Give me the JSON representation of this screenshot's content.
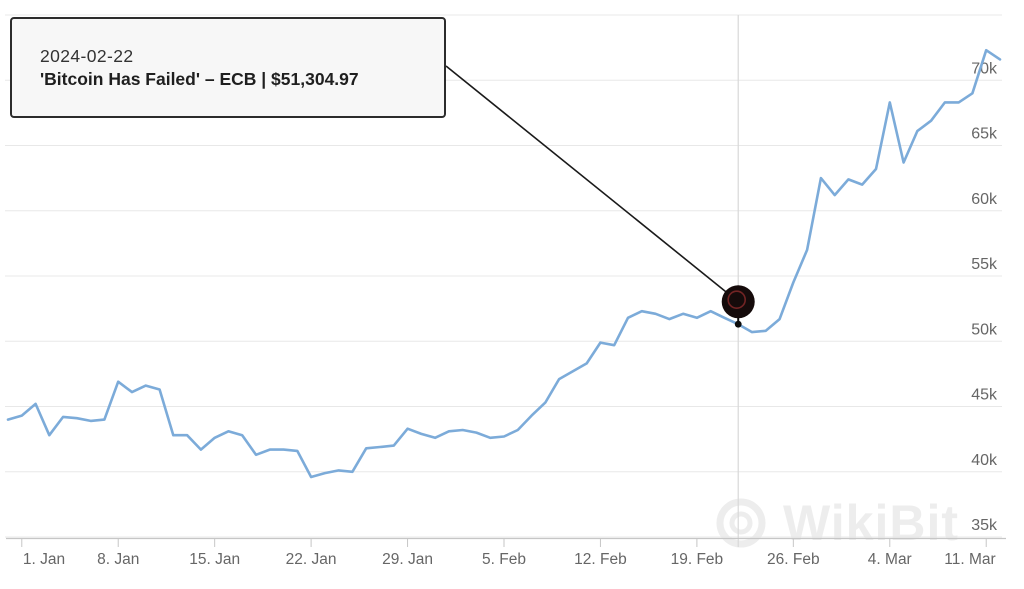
{
  "tooltip": {
    "date": "2024-02-22",
    "label": "'Bitcoin Has Failed' – ECB | $51,304.97"
  },
  "watermark": {
    "text": "WikiBit"
  },
  "colors": {
    "line": "#7cabd9",
    "grid": "#e8e8e8",
    "axis_line": "#c6c6c6",
    "crosshair": "#d8d8d8",
    "axis_label": "#666666",
    "marker_fill": "#150b0b",
    "marker_ring": "#722424",
    "annotation_line": "#1a1a1a",
    "dot": "#0b0b0b",
    "tooltip_bg": "#f7f7f7",
    "tooltip_border": "#2c2c2c",
    "watermark": "#ededed"
  },
  "chart_data": {
    "type": "line",
    "title": "",
    "xlabel": "",
    "ylabel": "",
    "ylim": [
      35000,
      75000
    ],
    "grid_step": 5000,
    "grid": "horizontal",
    "legend": "none",
    "dates": [
      "2023-12-31",
      "2024-01-01",
      "2024-01-02",
      "2024-01-03",
      "2024-01-04",
      "2024-01-05",
      "2024-01-06",
      "2024-01-07",
      "2024-01-08",
      "2024-01-09",
      "2024-01-10",
      "2024-01-11",
      "2024-01-12",
      "2024-01-13",
      "2024-01-14",
      "2024-01-15",
      "2024-01-16",
      "2024-01-17",
      "2024-01-18",
      "2024-01-19",
      "2024-01-20",
      "2024-01-21",
      "2024-01-22",
      "2024-01-23",
      "2024-01-24",
      "2024-01-25",
      "2024-01-26",
      "2024-01-27",
      "2024-01-28",
      "2024-01-29",
      "2024-01-30",
      "2024-01-31",
      "2024-02-01",
      "2024-02-02",
      "2024-02-03",
      "2024-02-04",
      "2024-02-05",
      "2024-02-06",
      "2024-02-07",
      "2024-02-08",
      "2024-02-09",
      "2024-02-10",
      "2024-02-11",
      "2024-02-12",
      "2024-02-13",
      "2024-02-14",
      "2024-02-15",
      "2024-02-16",
      "2024-02-17",
      "2024-02-18",
      "2024-02-19",
      "2024-02-20",
      "2024-02-21",
      "2024-02-22",
      "2024-02-23",
      "2024-02-24",
      "2024-02-25",
      "2024-02-26",
      "2024-02-27",
      "2024-02-28",
      "2024-02-29",
      "2024-03-01",
      "2024-03-02",
      "2024-03-03",
      "2024-03-04",
      "2024-03-05",
      "2024-03-06",
      "2024-03-07",
      "2024-03-08",
      "2024-03-09",
      "2024-03-10",
      "2024-03-11",
      "2024-03-12"
    ],
    "values": [
      44000,
      44300,
      45200,
      42800,
      44200,
      44100,
      43900,
      44000,
      46900,
      46100,
      46600,
      46300,
      42800,
      42800,
      41700,
      42600,
      43100,
      42800,
      41300,
      41700,
      41700,
      41600,
      39600,
      39900,
      40100,
      40000,
      41800,
      41900,
      42000,
      43300,
      42900,
      42600,
      43100,
      43200,
      43000,
      42600,
      42700,
      43200,
      44300,
      45300,
      47100,
      47700,
      48300,
      49900,
      49700,
      51800,
      52300,
      52100,
      51700,
      52100,
      51800,
      52300,
      51800,
      51304.97,
      50700,
      50800,
      51700,
      54500,
      57000,
      62500,
      61200,
      62400,
      62000,
      63200,
      68300,
      63700,
      66100,
      66900,
      68300,
      68300,
      69000,
      72300,
      71600
    ],
    "y_ticks": [
      {
        "value": 35000,
        "label": "35k"
      },
      {
        "value": 40000,
        "label": "40k"
      },
      {
        "value": 45000,
        "label": "45k"
      },
      {
        "value": 50000,
        "label": "50k"
      },
      {
        "value": 55000,
        "label": "55k"
      },
      {
        "value": 60000,
        "label": "60k"
      },
      {
        "value": 65000,
        "label": "65k"
      },
      {
        "value": 70000,
        "label": "70k"
      }
    ],
    "x_ticks": [
      {
        "date": "2024-01-01",
        "label": "1. Jan"
      },
      {
        "date": "2024-01-08",
        "label": "8. Jan"
      },
      {
        "date": "2024-01-15",
        "label": "15. Jan"
      },
      {
        "date": "2024-01-22",
        "label": "22. Jan"
      },
      {
        "date": "2024-01-29",
        "label": "29. Jan"
      },
      {
        "date": "2024-02-05",
        "label": "5. Feb"
      },
      {
        "date": "2024-02-12",
        "label": "12. Feb"
      },
      {
        "date": "2024-02-19",
        "label": "19. Feb"
      },
      {
        "date": "2024-02-26",
        "label": "26. Feb"
      },
      {
        "date": "2024-03-04",
        "label": "4. Mar"
      },
      {
        "date": "2024-03-11",
        "label": "11. Mar"
      }
    ],
    "annotation": {
      "date": "2024-02-22",
      "value": 51304.97,
      "title": "2024-02-22",
      "text": "'Bitcoin Has Failed' – ECB | $51,304.97"
    }
  }
}
